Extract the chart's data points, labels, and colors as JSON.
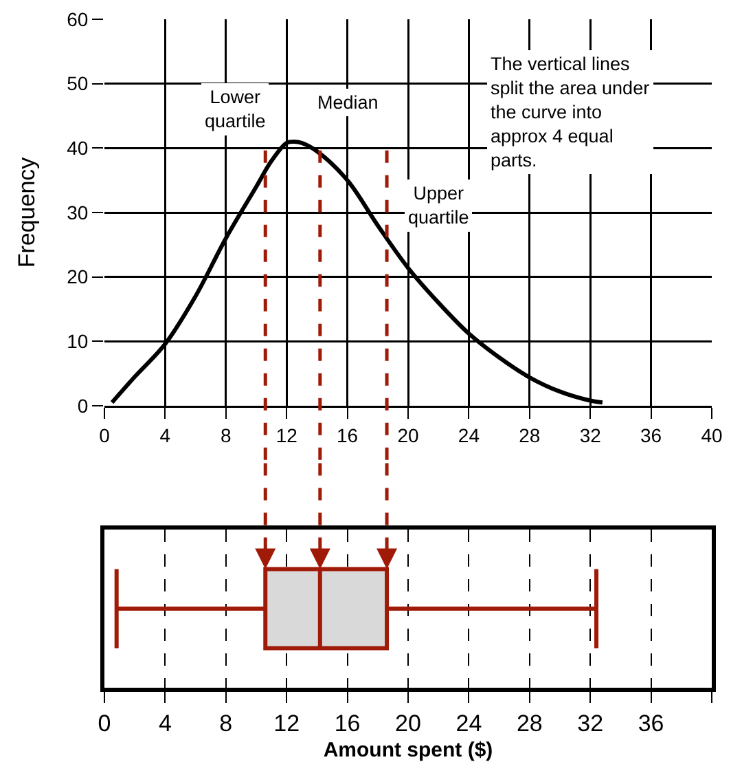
{
  "chart_data": [
    {
      "type": "line",
      "ylabel": "Frequency",
      "x": [
        0.5,
        2,
        4,
        6,
        8,
        10,
        11,
        12,
        12.5,
        13,
        14,
        16,
        18,
        20,
        22,
        24,
        26,
        28,
        30,
        32,
        32.8
      ],
      "series": [
        {
          "color": "#000000",
          "values": [
            0.5,
            4.5,
            9.6,
            17,
            26,
            34,
            38,
            40.8,
            41,
            40.8,
            39.5,
            35,
            28,
            21.4,
            16,
            11.2,
            7.5,
            4.4,
            2.2,
            0.8,
            0.5
          ]
        }
      ],
      "xlim": [
        0,
        40
      ],
      "xticks": [
        0,
        4,
        8,
        12,
        16,
        20,
        24,
        28,
        32,
        36,
        40
      ],
      "ylim": [
        0,
        60
      ],
      "yticks": [
        0,
        10,
        20,
        30,
        40,
        50,
        60
      ],
      "grid": true,
      "marker": "none",
      "line_style": "solid",
      "ref_lines": [
        {
          "axis": "x",
          "value": 10.6,
          "color": "#a01a08",
          "line_style": "dashed"
        },
        {
          "axis": "x",
          "value": 14.2,
          "color": "#a01a08",
          "line_style": "dashed"
        },
        {
          "axis": "x",
          "value": 18.6,
          "color": "#a01a08",
          "line_style": "dashed"
        }
      ],
      "annotations": [
        "Lower\nquartile",
        "Median",
        "Upper\nquartile",
        "The vertical lines\nsplit the area under\nthe curve into\napprox 4 equal\nparts."
      ]
    },
    {
      "type": "box",
      "orientation": "horizontal",
      "categories": [
        null
      ],
      "xlabel": "Amount spent ($)",
      "series": [
        {
          "color": "#a01a08",
          "boxes": [
            {
              "low": 0.8,
              "q1": 10.6,
              "median": 14.2,
              "q3": 18.6,
              "high": 32.4
            }
          ]
        }
      ],
      "xlim": [
        0,
        40
      ],
      "xticks": [
        0,
        4,
        8,
        12,
        16,
        20,
        24,
        28,
        32,
        36,
        {
          "value": 40,
          "label": null
        }
      ],
      "grid": "x",
      "tick_labels": "x"
    }
  ]
}
